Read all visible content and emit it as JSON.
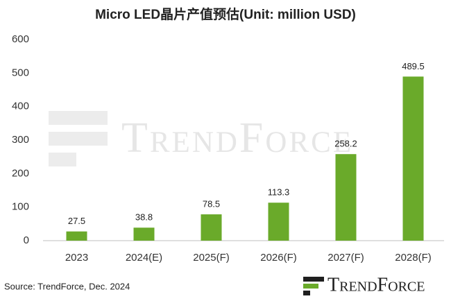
{
  "chart_data": {
    "type": "bar",
    "title": "Micro LED晶片产值预估(Unit: million USD)",
    "categories": [
      "2023",
      "2024(E)",
      "2025(F)",
      "2026(F)",
      "2027(F)",
      "2028(F)"
    ],
    "values": [
      27.5,
      38.8,
      78.5,
      113.3,
      258.2,
      489.5
    ],
    "color": "#6aaa2a",
    "ylim": [
      0,
      600
    ],
    "yticks": [
      0,
      100,
      200,
      300,
      400,
      500,
      600
    ],
    "grid": false,
    "source": "Source: TrendForce, Dec. 2024",
    "watermark": "TrendForce",
    "logo": "TrendForce"
  }
}
